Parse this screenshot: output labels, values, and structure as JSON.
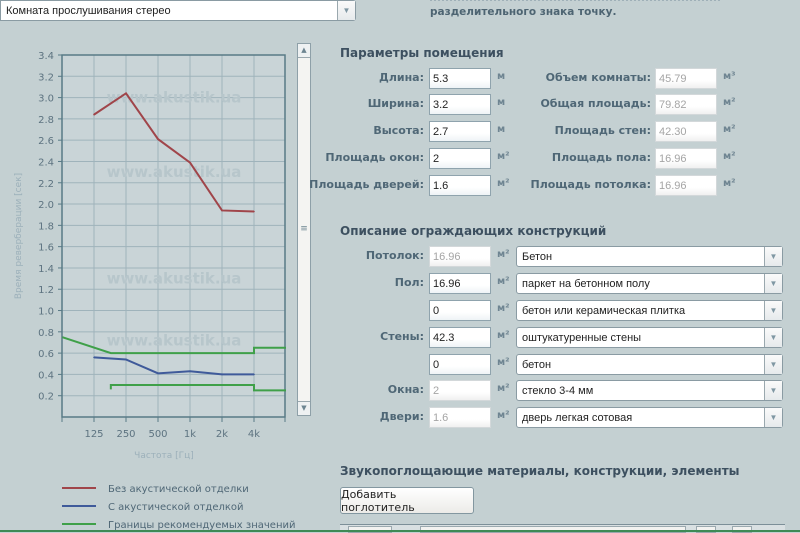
{
  "room_select": {
    "value": "Комната прослушивания стерео"
  },
  "note": {
    "line2": "разделительного знака точку."
  },
  "chart_data": {
    "type": "line",
    "ylabel": "Время реверберации [сек]",
    "xlabel": "Частота [Гц]",
    "categories": [
      "125",
      "250",
      "500",
      "1k",
      "2k",
      "4k"
    ],
    "y_ticks": [
      "3.4",
      "3.2",
      "3.0",
      "2.8",
      "2.6",
      "2.4",
      "2.2",
      "2.0",
      "1.8",
      "1.6",
      "1.4",
      "1.2",
      "1.0",
      "0.8",
      "0.6",
      "0.4",
      "0.2"
    ],
    "ylim": [
      0,
      3.4
    ],
    "grid": true,
    "watermark": "www.akustik.ua",
    "legend_position": "bottom",
    "series": [
      {
        "name": "Без акустической отделки",
        "color": "#a0454a",
        "values": [
          2.84,
          3.04,
          2.61,
          2.39,
          1.94,
          1.93
        ]
      },
      {
        "name": "С акустической отделкой",
        "color": "#3f5a9a",
        "values": [
          0.56,
          0.54,
          0.41,
          0.43,
          0.4,
          0.4
        ]
      },
      {
        "name": "Границы рекомендуемых значений",
        "color": "#3fa049",
        "upper": [
          [
            63,
            0.75
          ],
          [
            180,
            0.6
          ],
          [
            4000,
            0.6
          ],
          [
            4000,
            0.65
          ],
          [
            8000,
            0.65
          ]
        ],
        "lower": [
          [
            180,
            0.26
          ],
          [
            180,
            0.3
          ],
          [
            4000,
            0.3
          ],
          [
            4000,
            0.25
          ],
          [
            8000,
            0.25
          ]
        ]
      }
    ]
  },
  "room_params": {
    "title": "Параметры помещения",
    "left": [
      {
        "label": "Длина:",
        "value": "5.3",
        "unit": "м"
      },
      {
        "label": "Ширина:",
        "value": "3.2",
        "unit": "м"
      },
      {
        "label": "Высота:",
        "value": "2.7",
        "unit": "м"
      },
      {
        "label": "Площадь окон:",
        "value": "2",
        "unit": "м²"
      },
      {
        "label": "Площадь дверей:",
        "value": "1.6",
        "unit": "м²"
      }
    ],
    "right": [
      {
        "label": "Объем комнаты:",
        "value": "45.79",
        "unit": "м³"
      },
      {
        "label": "Общая площадь:",
        "value": "79.82",
        "unit": "м²"
      },
      {
        "label": "Площадь стен:",
        "value": "42.30",
        "unit": "м²"
      },
      {
        "label": "Площадь пола:",
        "value": "16.96",
        "unit": "м²"
      },
      {
        "label": "Площадь потолка:",
        "value": "16.96",
        "unit": "м²"
      }
    ]
  },
  "structures": {
    "title": "Описание ограждающих конструкций",
    "rows": [
      {
        "label": "Потолок:",
        "value": "16.96",
        "unit": "м²",
        "material": "Бетон",
        "readonly": true
      },
      {
        "label": "Пол:",
        "value": "16.96",
        "unit": "м²",
        "material": "паркет на бетонном полу",
        "readonly": false
      },
      {
        "label": "",
        "value": "0",
        "unit": "м²",
        "material": "бетон или керамическая плитка",
        "readonly": false
      },
      {
        "label": "Стены:",
        "value": "42.3",
        "unit": "м²",
        "material": "оштукатуренные стены",
        "readonly": false
      },
      {
        "label": "",
        "value": "0",
        "unit": "м²",
        "material": "бетон",
        "readonly": false
      },
      {
        "label": "Окна:",
        "value": "2",
        "unit": "м²",
        "material": "стекло 3-4 мм",
        "readonly": true
      },
      {
        "label": "Двери:",
        "value": "1.6",
        "unit": "м²",
        "material": "дверь легкая сотовая",
        "readonly": true
      }
    ]
  },
  "absorbers": {
    "title": "Звукопоглощающие материалы, конструкции, элементы",
    "add_label": "Добавить поглотитель"
  }
}
